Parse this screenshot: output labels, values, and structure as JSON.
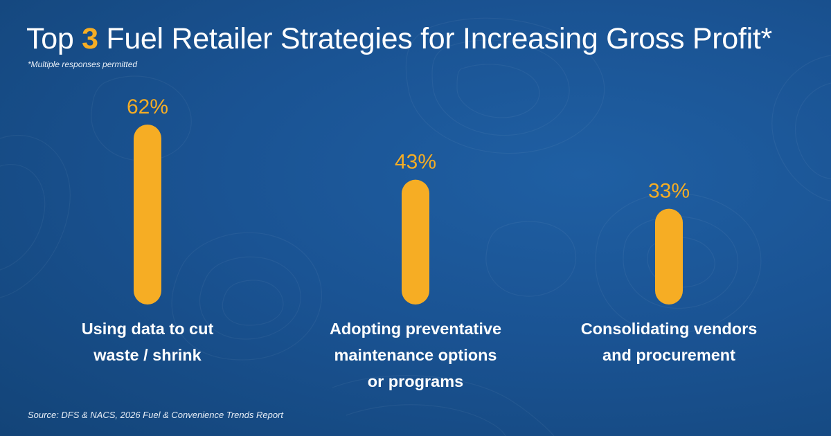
{
  "title": {
    "prefix": "Top ",
    "highlight": "3",
    "suffix": " Fuel Retailer Strategies for Increasing Gross Profit*"
  },
  "footnote": "*Multiple responses permitted",
  "source": "Source: DFS & NACS, 2026 Fuel & Convenience Trends Report",
  "colors": {
    "bar": "#f6ad24",
    "background": "#1a5393",
    "text": "#ffffff"
  },
  "chart_data": {
    "type": "bar",
    "title": "Top 3 Fuel Retailer Strategies for Increasing Gross Profit*",
    "categories": [
      "Using data to cut waste / shrink",
      "Adopting preventative maintenance options or programs",
      "Consolidating vendors and procurement"
    ],
    "values": [
      62,
      43,
      33
    ],
    "value_labels": [
      "62%",
      "43%",
      "33%"
    ],
    "category_lines": [
      [
        "Using data to cut",
        "waste / shrink"
      ],
      [
        "Adopting preventative",
        "maintenance options",
        "or programs"
      ],
      [
        "Consolidating vendors",
        "and procurement"
      ]
    ],
    "unit": "%",
    "xlabel": "",
    "ylabel": "",
    "ylim": [
      0,
      100
    ],
    "grid": false,
    "legend": "none"
  }
}
